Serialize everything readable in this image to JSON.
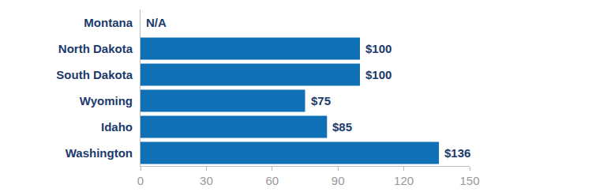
{
  "chart_data": {
    "type": "bar",
    "orientation": "horizontal",
    "categories": [
      "Montana",
      "North Dakota",
      "South Dakota",
      "Wyoming",
      "Idaho",
      "Washington"
    ],
    "values": [
      null,
      100,
      100,
      75,
      85,
      136
    ],
    "value_labels": [
      "N/A",
      "$100",
      "$100",
      "$75",
      "$85",
      "$136"
    ],
    "data_labels": true,
    "color": "#1070b5",
    "xlim": [
      0,
      150
    ],
    "xticks": [
      0,
      30,
      60,
      90,
      120,
      150
    ],
    "grid": false
  }
}
